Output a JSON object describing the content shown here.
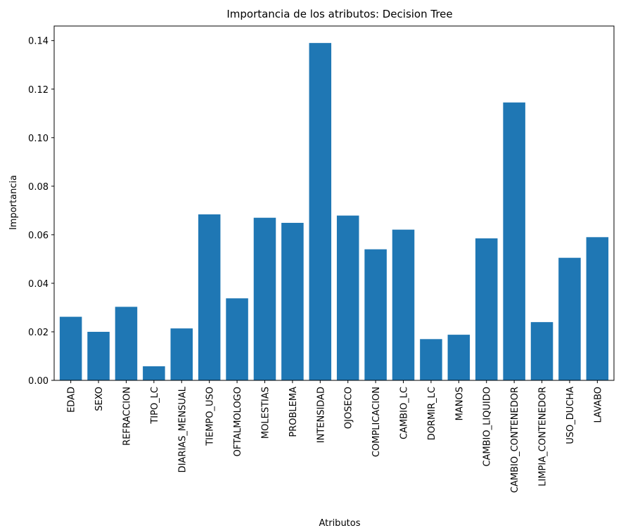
{
  "chart_data": {
    "type": "bar",
    "title": "Importancia de los atributos: Decision Tree",
    "xlabel": "Atributos",
    "ylabel": "Importancia",
    "ylim": [
      0,
      0.146
    ],
    "yticks": [
      "0.00",
      "0.02",
      "0.04",
      "0.06",
      "0.08",
      "0.10",
      "0.12",
      "0.14"
    ],
    "ytick_values": [
      0,
      0.02,
      0.04,
      0.06,
      0.08,
      0.1,
      0.12,
      0.14
    ],
    "grid": false,
    "bar_color": "#1f77b4",
    "categories": [
      "EDAD",
      "SEXO",
      "REFRACCION",
      "TIPO_LC",
      "DIARIAS_MENSUAL",
      "TIEMPO_USO",
      "OFTALMOLOGO",
      "MOLESTIAS",
      "PROBLEMA",
      "INTENSIDAD",
      "OJOSECO",
      "COMPLICACION",
      "CAMBIO_LC",
      "DORMIR_LC",
      "MANOS",
      "CAMBIO_LIQUIDO",
      "CAMBIO_CONTENEDOR",
      "LIMPIA_CONTENEDOR",
      "USO_DUCHA",
      "LAVABO"
    ],
    "values": [
      0.0262,
      0.02,
      0.0303,
      0.0058,
      0.0214,
      0.0684,
      0.0338,
      0.067,
      0.0649,
      0.139,
      0.0679,
      0.054,
      0.0621,
      0.017,
      0.0188,
      0.0585,
      0.1145,
      0.024,
      0.0505,
      0.059
    ]
  }
}
